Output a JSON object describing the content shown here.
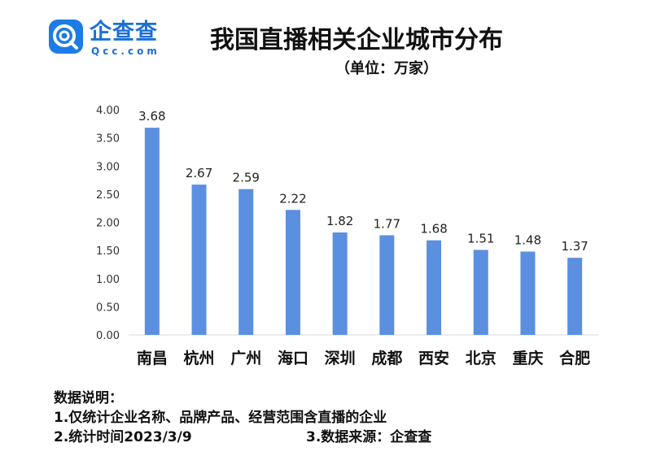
{
  "logo": {
    "name": "企查查",
    "domain": "Qcc.com"
  },
  "header": {
    "title": "我国直播相关企业城市分布",
    "subtitle": "（单位：万家）"
  },
  "chart_data": {
    "type": "bar",
    "categories": [
      "南昌",
      "杭州",
      "广州",
      "海口",
      "深圳",
      "成都",
      "西安",
      "北京",
      "重庆",
      "合肥"
    ],
    "values": [
      3.68,
      2.67,
      2.59,
      2.22,
      1.82,
      1.77,
      1.68,
      1.51,
      1.48,
      1.37
    ],
    "value_labels": [
      "3.68",
      "2.67",
      "2.59",
      "2.22",
      "1.82",
      "1.77",
      "1.68",
      "1.51",
      "1.48",
      "1.37"
    ],
    "title": "我国直播相关企业城市分布",
    "unit": "（单位：万家）",
    "xlabel": "",
    "ylabel": "",
    "ylim": [
      0,
      4
    ],
    "yticks": [
      "0.00",
      "0.50",
      "1.00",
      "1.50",
      "2.00",
      "2.50",
      "3.00",
      "3.50",
      "4.00"
    ],
    "ytick_values": [
      0,
      0.5,
      1,
      1.5,
      2,
      2.5,
      3,
      3.5,
      4
    ],
    "grid": false,
    "legend": "none",
    "bar_color": "#5b8fe0"
  },
  "notes": {
    "heading": "数据说明：",
    "line1": "1.仅统计企业名称、品牌产品、经营范围含直播的企业",
    "line2": "2.统计时间2023/3/9",
    "line3": "3.数据来源：企查查"
  }
}
